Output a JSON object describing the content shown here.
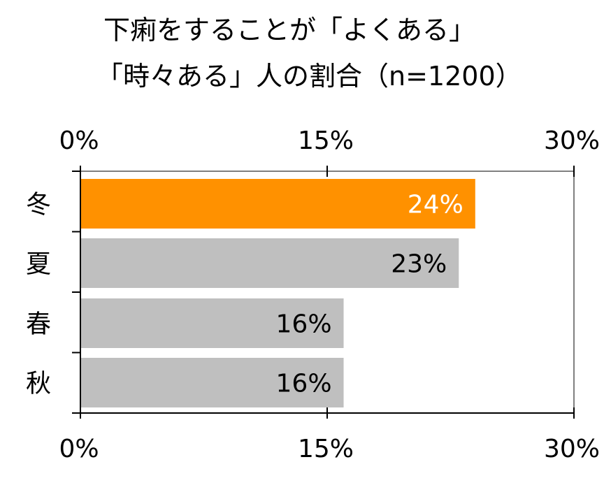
{
  "chart_data": {
    "type": "bar",
    "orientation": "horizontal",
    "title_lines": [
      "下痢をすることが「よくある」",
      "「時々ある」人の割合（n=1200）"
    ],
    "categories": [
      "冬",
      "夏",
      "春",
      "秋"
    ],
    "values": [
      24,
      23,
      16,
      16
    ],
    "data_labels": [
      "24%",
      "23%",
      "16%",
      "16%"
    ],
    "xlim": [
      0,
      30
    ],
    "ticks": [
      0,
      15,
      30
    ],
    "tick_labels": [
      "0%",
      "15%",
      "30%"
    ],
    "tick_label_positions": [
      "top",
      "bottom"
    ],
    "grid": false,
    "legend": "none",
    "colors": {
      "highlight": "#FF9100",
      "default": "#BFBFBF",
      "highlight_label": "#FFFFFF",
      "default_label": "#000000",
      "axis": "#000000",
      "plot_border": "#000000"
    },
    "highlight_index": 0
  }
}
